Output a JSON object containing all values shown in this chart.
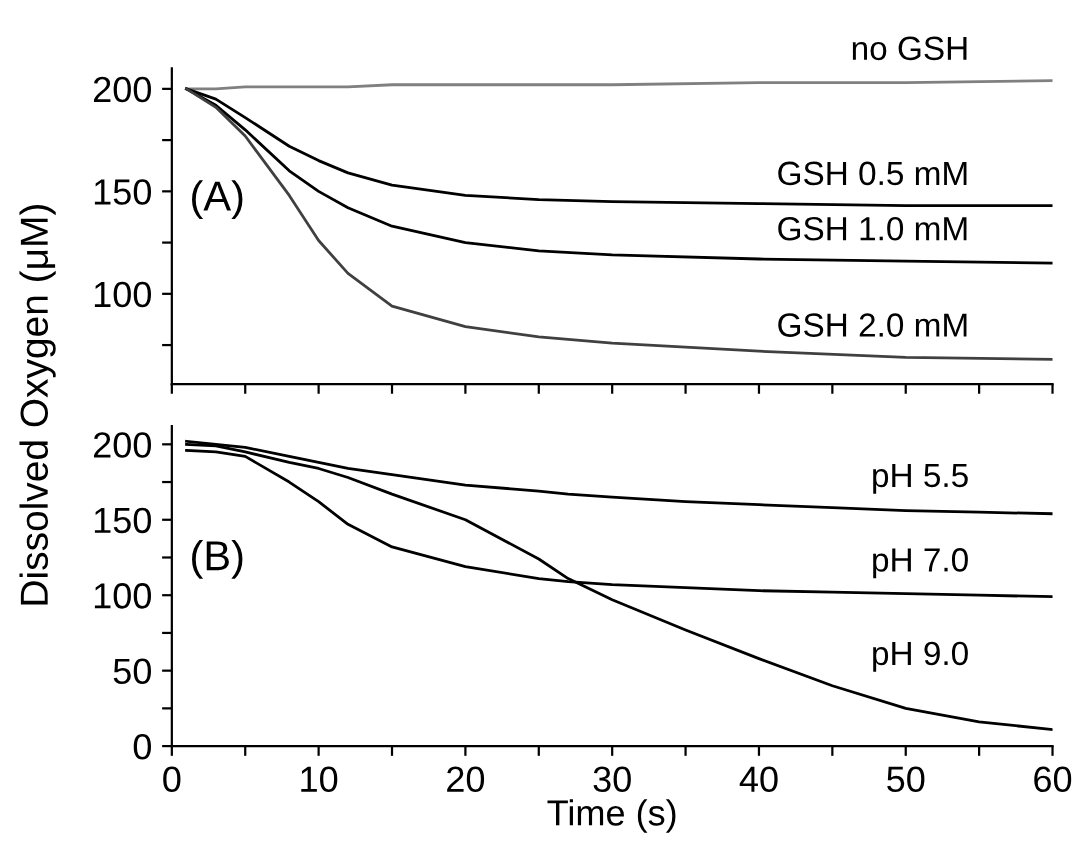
{
  "chart_data": [
    {
      "type": "line",
      "ylabel": "Dissolved Oxygen (μM)",
      "annotations": [
        "(A)"
      ],
      "xlim": [
        0,
        60
      ],
      "ylim": [
        56,
        210
      ],
      "xticks": [
        {
          "value": 0,
          "label": null
        },
        {
          "value": 5,
          "label": null
        },
        {
          "value": 10,
          "label": null
        },
        {
          "value": 15,
          "label": null
        },
        {
          "value": 20,
          "label": null
        },
        {
          "value": 25,
          "label": null
        },
        {
          "value": 30,
          "label": null
        },
        {
          "value": 35,
          "label": null
        },
        {
          "value": 40,
          "label": null
        },
        {
          "value": 45,
          "label": null
        },
        {
          "value": 50,
          "label": null
        },
        {
          "value": 55,
          "label": null
        },
        {
          "value": 60,
          "label": null
        }
      ],
      "yticks": [
        {
          "value": 75,
          "label": null
        },
        100,
        {
          "value": 125,
          "label": null
        },
        150,
        {
          "value": 175,
          "label": null
        },
        200
      ],
      "tick_labels": "y",
      "grid": false,
      "legend": false,
      "marker": "none",
      "line_style": "solid",
      "x": [
        1,
        3,
        5,
        8,
        10,
        12,
        15,
        20,
        25,
        30,
        40,
        50,
        60
      ],
      "series": [
        {
          "name": "no GSH",
          "color": "#808080",
          "values": [
            200,
            200,
            201,
            201,
            201,
            201,
            202,
            202,
            202,
            202,
            203,
            203,
            204
          ]
        },
        {
          "name": "GSH 0.5 mM",
          "color": "#000000",
          "values": [
            200,
            195,
            186,
            172,
            165,
            159,
            153,
            148,
            146,
            145,
            144,
            143,
            143
          ]
        },
        {
          "name": "GSH 1.0 mM",
          "color": "#000000",
          "values": [
            200,
            192,
            180,
            160,
            150,
            142,
            133,
            125,
            121,
            119,
            117,
            116,
            115
          ]
        },
        {
          "name": "GSH 2.0 mM",
          "color": "#404040",
          "values": [
            200,
            191,
            177,
            148,
            126,
            110,
            94,
            84,
            79,
            76,
            72,
            69,
            68
          ]
        }
      ]
    },
    {
      "type": "line",
      "xlabel": "Time (s)",
      "annotations": [
        "(B)"
      ],
      "xlim": [
        0,
        60
      ],
      "ylim": [
        0,
        212
      ],
      "xticks": [
        0,
        {
          "value": 5,
          "label": null
        },
        10,
        {
          "value": 15,
          "label": null
        },
        20,
        {
          "value": 25,
          "label": null
        },
        30,
        {
          "value": 35,
          "label": null
        },
        40,
        {
          "value": 45,
          "label": null
        },
        50,
        {
          "value": 55,
          "label": null
        },
        60
      ],
      "yticks": [
        0,
        {
          "value": 25,
          "label": null
        },
        50,
        {
          "value": 75,
          "label": null
        },
        100,
        {
          "value": 125,
          "label": null
        },
        150,
        {
          "value": 175,
          "label": null
        },
        200
      ],
      "grid": false,
      "legend": false,
      "marker": "none",
      "line_style": "solid",
      "x": [
        1,
        3,
        5,
        8,
        10,
        12,
        15,
        20,
        25,
        27,
        30,
        35,
        40,
        45,
        50,
        55,
        60
      ],
      "series": [
        {
          "name": "pH 5.5",
          "color": "#000000",
          "values": [
            202,
            200,
            198,
            192,
            188,
            184,
            180,
            173,
            169,
            167,
            165,
            162,
            160,
            158,
            156,
            155,
            154
          ]
        },
        {
          "name": "pH 7.0",
          "color": "#000000",
          "values": [
            196,
            195,
            192,
            175,
            162,
            147,
            132,
            119,
            111,
            109,
            107,
            105,
            103,
            102,
            101,
            100,
            99
          ]
        },
        {
          "name": "pH 9.0",
          "color": "#000000",
          "values": [
            200,
            199,
            195,
            188,
            184,
            178,
            167,
            150,
            124,
            111,
            97,
            77,
            58,
            40,
            25,
            16,
            11
          ]
        }
      ]
    }
  ]
}
